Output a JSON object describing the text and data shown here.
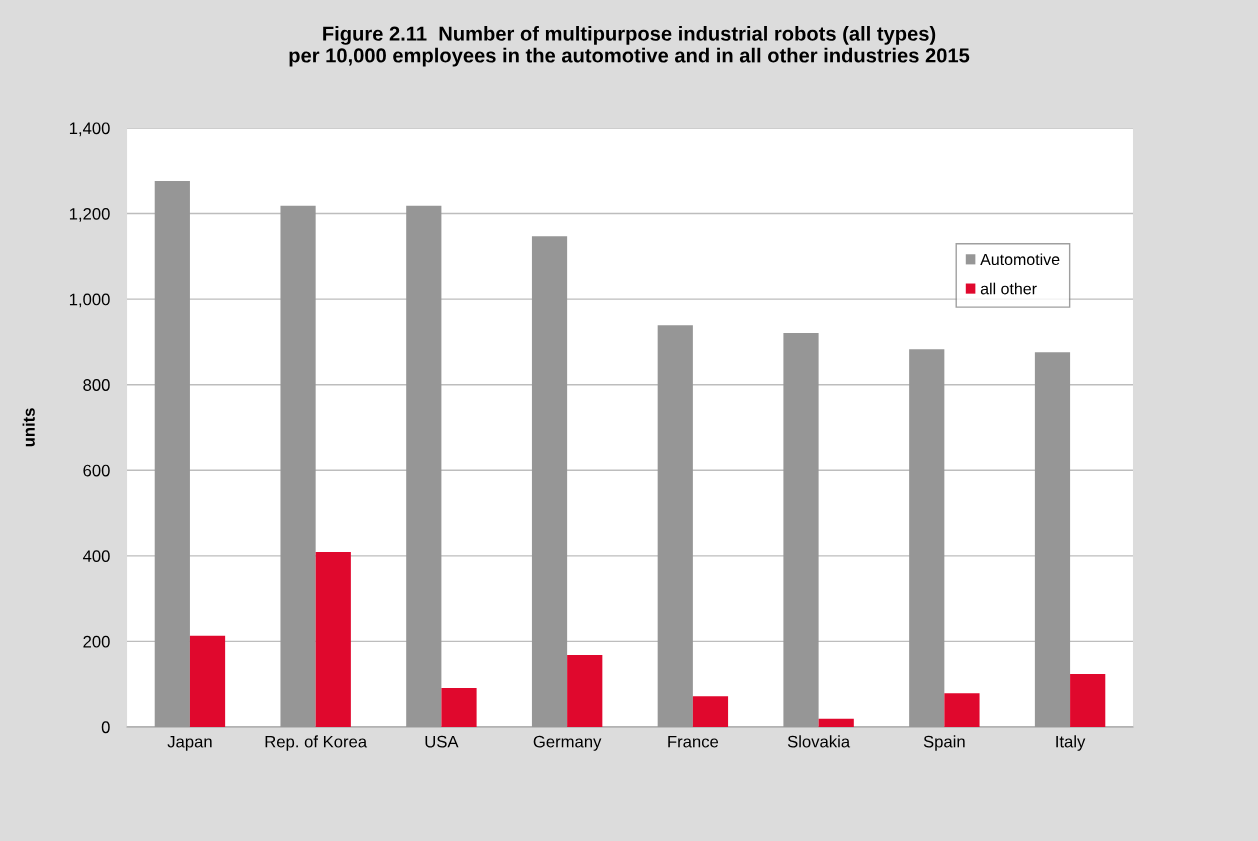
{
  "chart_data": {
    "type": "bar",
    "title": "Figure 2.11  Number of multipurpose industrial robots (all types)\nper 10,000 employees in the automotive and in all other industries 2015",
    "ylabel": "units",
    "categories": [
      "Japan",
      "Rep. of Korea",
      "USA",
      "Germany",
      "France",
      "Slovakia",
      "Spain",
      "Italy"
    ],
    "series": [
      {
        "name": "Automotive",
        "color": "#969696",
        "values": [
          1276,
          1218,
          1218,
          1147,
          939,
          921,
          883,
          876
        ]
      },
      {
        "name": "all other",
        "color": "#e0082d",
        "values": [
          213,
          409,
          91,
          168,
          72,
          19,
          79,
          124
        ]
      }
    ],
    "ylim": [
      0,
      1400
    ],
    "yticks": [
      {
        "value": 0,
        "label": "0"
      },
      {
        "value": 200,
        "label": "200"
      },
      {
        "value": 400,
        "label": "400"
      },
      {
        "value": 600,
        "label": "600"
      },
      {
        "value": 800,
        "label": "800"
      },
      {
        "value": 1000,
        "label": "1,000"
      },
      {
        "value": 1200,
        "label": "1,200"
      },
      {
        "value": 1400,
        "label": "1,400"
      }
    ],
    "grid": "y",
    "legend": "top right"
  }
}
